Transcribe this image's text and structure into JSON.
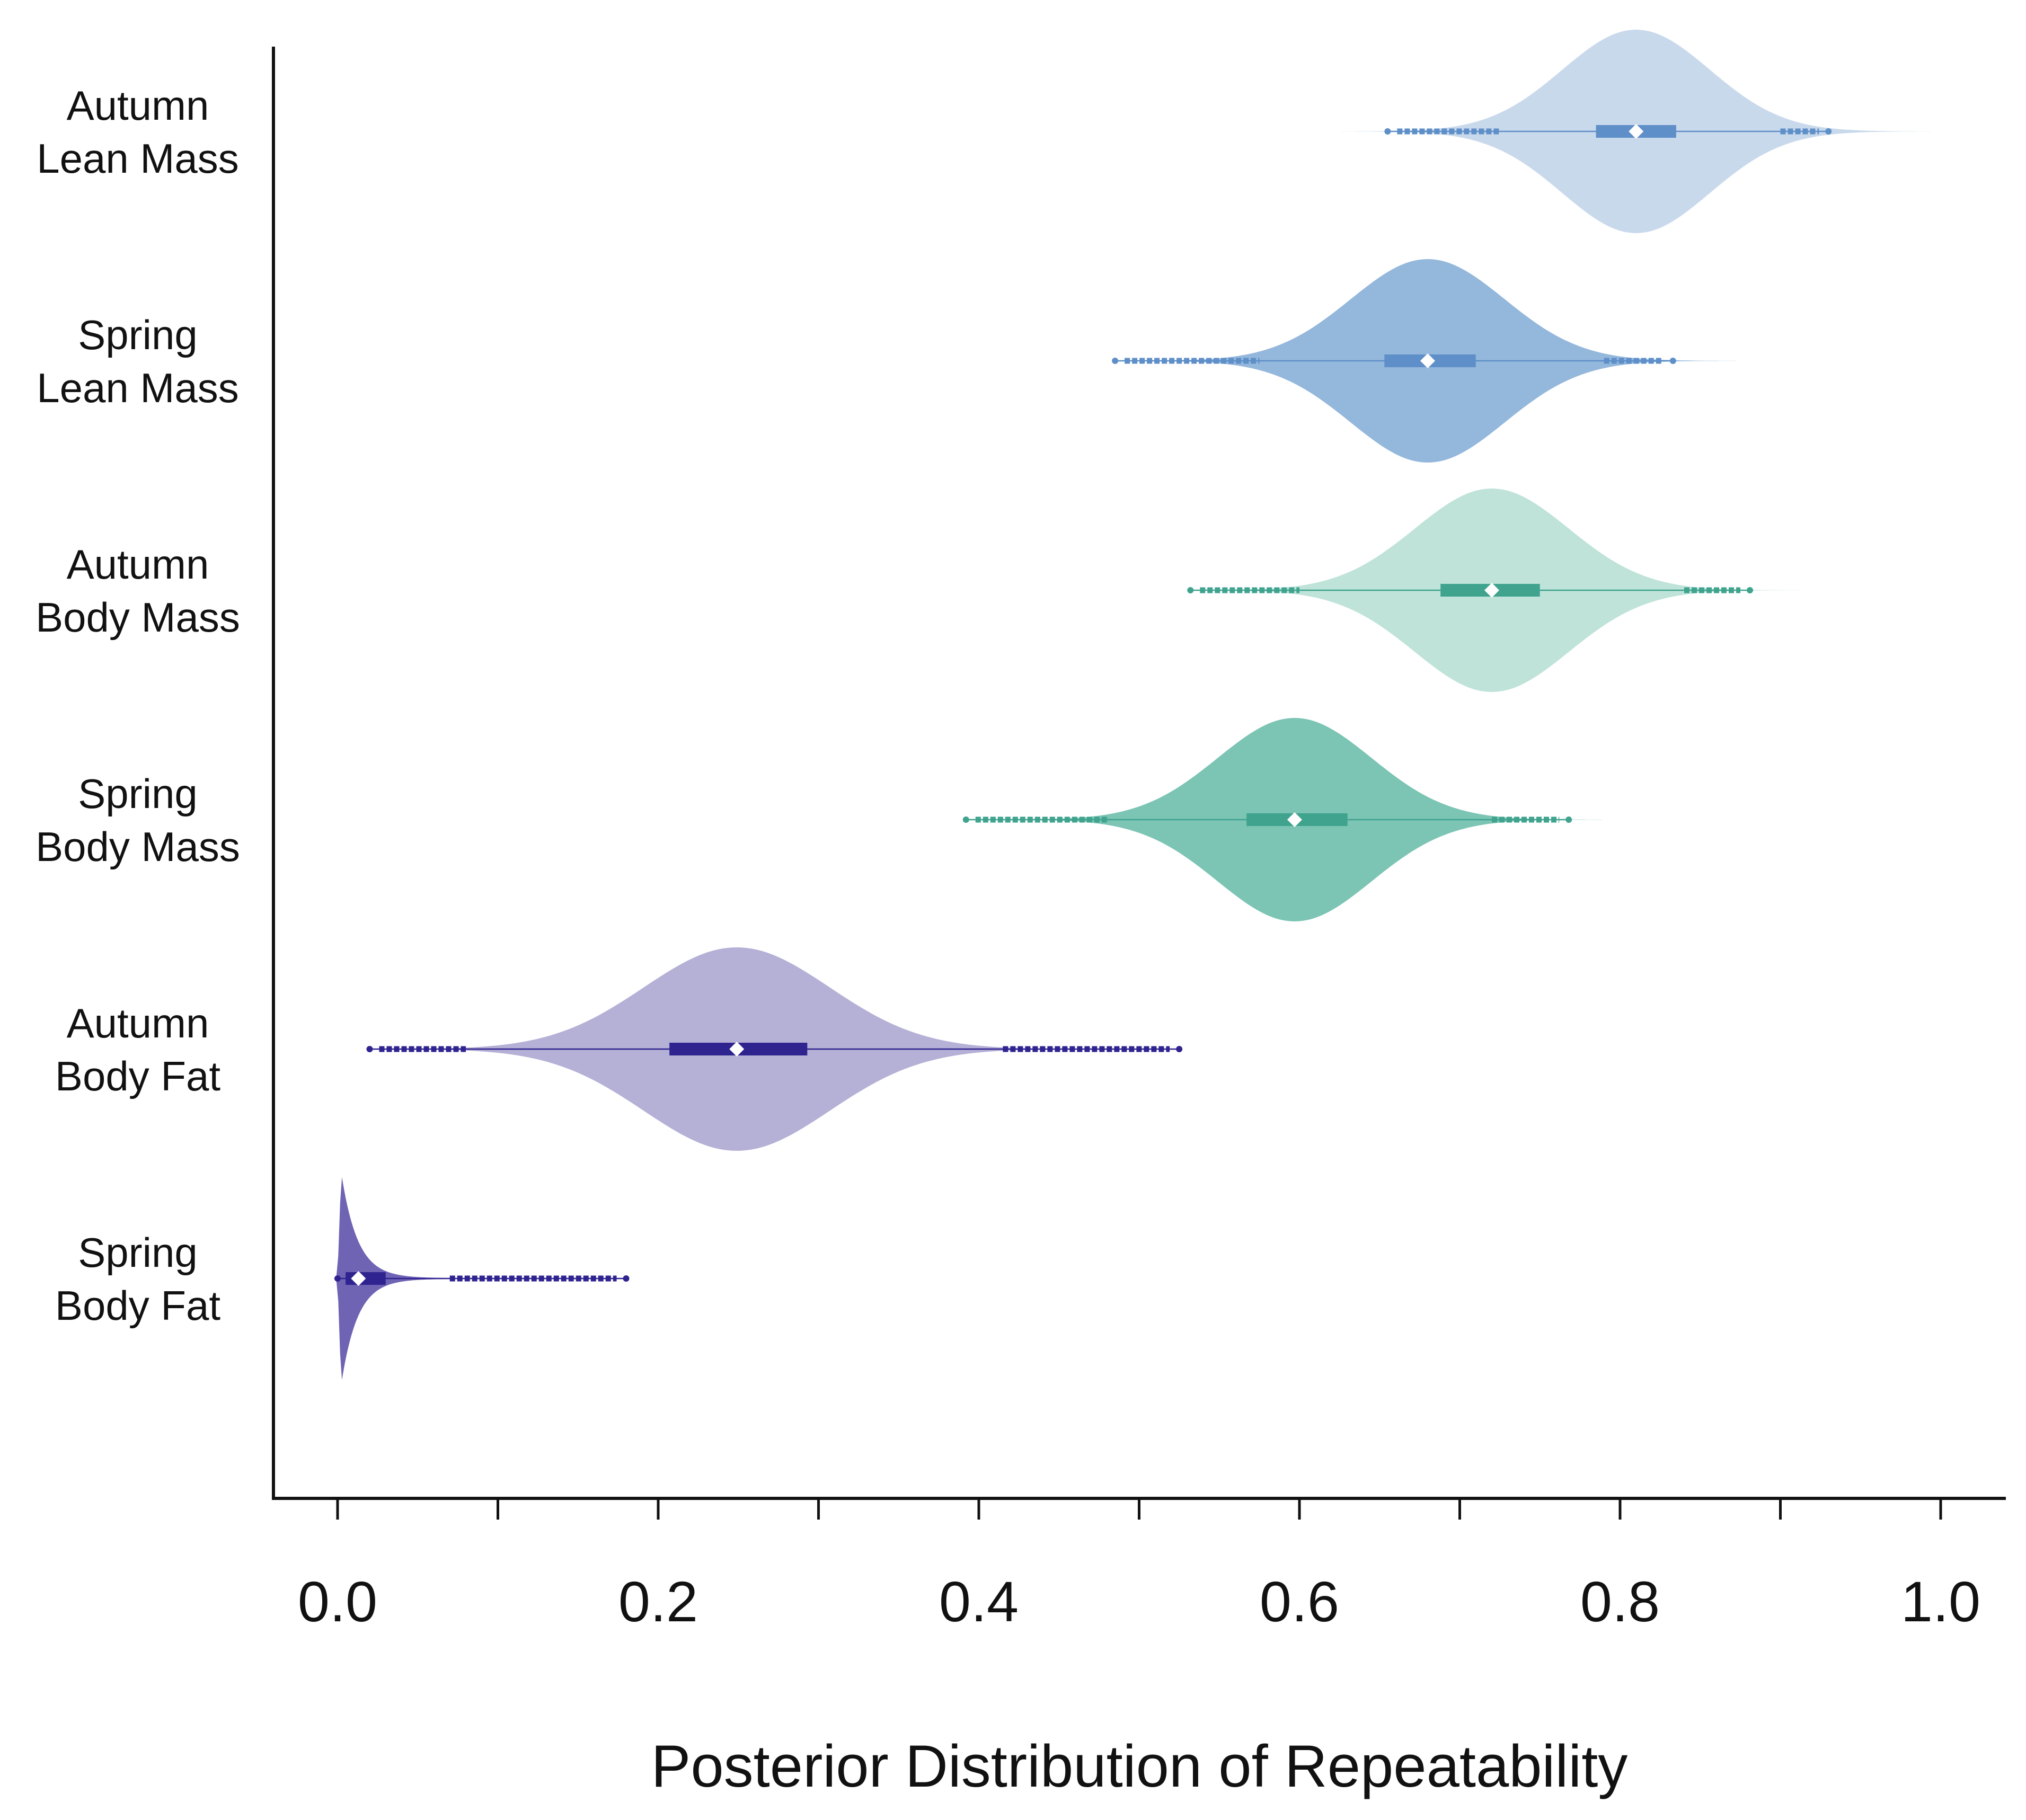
{
  "chart_data": {
    "type": "violin",
    "title": "",
    "xlabel": "Posterior Distribution of Repeatability",
    "ylabel": "",
    "xlim": [
      0.0,
      1.0
    ],
    "xticks": [
      "0.0",
      "0.2",
      "0.4",
      "0.6",
      "0.8",
      "1.0"
    ],
    "grid": false,
    "categories": [
      {
        "line1": "Autumn",
        "line2": "Lean Mass"
      },
      {
        "line1": "Spring",
        "line2": "Lean Mass"
      },
      {
        "line1": "Autumn",
        "line2": "Body Mass"
      },
      {
        "line1": "Spring",
        "line2": "Body Mass"
      },
      {
        "line1": "Autumn",
        "line2": "Body Fat"
      },
      {
        "line1": "Spring",
        "line2": "Body Fat"
      }
    ],
    "series": [
      {
        "name": "Autumn Lean Mass",
        "median": 0.81,
        "q1": 0.785,
        "q3": 0.835,
        "whisker_low": 0.725,
        "whisker_high": 0.9,
        "min": 0.655,
        "max": 0.93,
        "spread": 0.046,
        "skew": 0,
        "fill": "#c9d9ec",
        "dark": "#5e8fc8"
      },
      {
        "name": "Spring Lean Mass",
        "median": 0.68,
        "q1": 0.653,
        "q3": 0.71,
        "whisker_low": 0.575,
        "whisker_high": 0.79,
        "min": 0.485,
        "max": 0.833,
        "spread": 0.048,
        "skew": 0,
        "fill": "#94b7dc",
        "dark": "#5e8fc8"
      },
      {
        "name": "Autumn Body Mass",
        "median": 0.72,
        "q1": 0.688,
        "q3": 0.75,
        "whisker_low": 0.6,
        "whisker_high": 0.84,
        "min": 0.532,
        "max": 0.881,
        "spread": 0.048,
        "skew": 0,
        "fill": "#bfe3d9",
        "dark": "#3fa38e"
      },
      {
        "name": "Spring Body Mass",
        "median": 0.597,
        "q1": 0.567,
        "q3": 0.63,
        "whisker_low": 0.48,
        "whisker_high": 0.72,
        "min": 0.392,
        "max": 0.768,
        "spread": 0.048,
        "skew": 0,
        "fill": "#7cc4b4",
        "dark": "#3fa38e"
      },
      {
        "name": "Autumn Body Fat",
        "median": 0.249,
        "q1": 0.207,
        "q3": 0.293,
        "whisker_low": 0.08,
        "whisker_high": 0.415,
        "min": 0.02,
        "max": 0.525,
        "spread": 0.058,
        "skew": 0,
        "fill": "#b5b0d6",
        "dark": "#2f2390"
      },
      {
        "name": "Spring Body Fat",
        "median": 0.013,
        "q1": 0.005,
        "q3": 0.03,
        "whisker_low": 0.0,
        "whisker_high": 0.07,
        "min": 0.0,
        "max": 0.18,
        "spread": 0.01,
        "skew": 1,
        "fill": "#6f63b4",
        "dark": "#2f2390"
      }
    ]
  }
}
